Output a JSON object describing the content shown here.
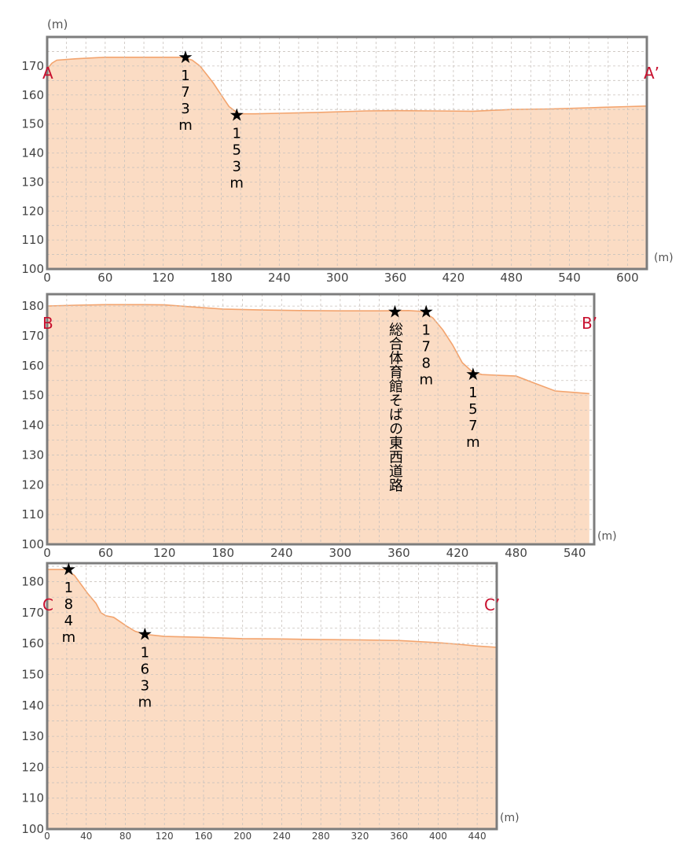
{
  "chart_data": [
    {
      "type": "area",
      "y_unit": "(m)",
      "x_unit": "(m)",
      "ylim": [
        100,
        180
      ],
      "y_ticks": [
        "100",
        "110",
        "120",
        "130",
        "140",
        "150",
        "160",
        "170"
      ],
      "xlim": [
        0,
        620
      ],
      "x_ticks": [
        "0",
        "60",
        "120",
        "180",
        "240",
        "300",
        "360",
        "420",
        "480",
        "540",
        "600"
      ],
      "grid": true,
      "start_label": "A",
      "end_label": "A’",
      "x": [
        0,
        5,
        10,
        30,
        60,
        100,
        140,
        150,
        158,
        165,
        172,
        180,
        188,
        196,
        200,
        215,
        240,
        280,
        330,
        360,
        400,
        440,
        480,
        520,
        560,
        600,
        620
      ],
      "y": [
        169,
        171,
        172,
        172.5,
        173,
        173,
        173,
        172,
        170,
        167,
        164,
        160,
        156,
        154,
        153.5,
        153.5,
        153.7,
        154,
        154.5,
        154.6,
        154.5,
        154.4,
        155,
        155.2,
        155.6,
        156,
        156.2
      ],
      "annotations": [
        {
          "x": 143,
          "y": 173,
          "marker": "★",
          "text": "173m"
        },
        {
          "x": 196,
          "y": 153,
          "marker": "★",
          "text": "153m"
        }
      ]
    },
    {
      "type": "area",
      "x_unit": "(m)",
      "ylim": [
        100,
        184
      ],
      "y_ticks": [
        "100",
        "110",
        "120",
        "130",
        "140",
        "150",
        "160",
        "170",
        "180"
      ],
      "xlim": [
        0,
        560
      ],
      "x_ticks": [
        "0",
        "60",
        "120",
        "180",
        "240",
        "300",
        "360",
        "420",
        "480",
        "540"
      ],
      "grid": true,
      "start_label": "B",
      "end_label": "B’",
      "x": [
        0,
        30,
        60,
        100,
        120,
        150,
        180,
        220,
        260,
        300,
        340,
        370,
        385,
        395,
        405,
        415,
        425,
        435,
        445,
        460,
        480,
        500,
        520,
        540,
        555
      ],
      "y": [
        180,
        180.3,
        180.5,
        180.5,
        180.4,
        179.7,
        179,
        178.7,
        178.5,
        178.4,
        178.4,
        178.5,
        178.2,
        176,
        172,
        167,
        161,
        158,
        157,
        156.8,
        156.5,
        154,
        151.5,
        151,
        150.6
      ],
      "annotations": [
        {
          "x": 356,
          "y": 178,
          "marker": "★",
          "text": "総合体育館そばの東西道路"
        },
        {
          "x": 388,
          "y": 178,
          "marker": "★",
          "text": "178m"
        },
        {
          "x": 436,
          "y": 157,
          "marker": "★",
          "text": "157m"
        }
      ]
    },
    {
      "type": "area",
      "x_unit": "(m)",
      "ylim": [
        100,
        186
      ],
      "y_ticks": [
        "100",
        "110",
        "120",
        "130",
        "140",
        "150",
        "160",
        "170",
        "180"
      ],
      "xlim": [
        0,
        460
      ],
      "x_ticks": [
        "0",
        "40",
        "80",
        "120",
        "160",
        "200",
        "240",
        "280",
        "320",
        "360",
        "400",
        "440"
      ],
      "grid": true,
      "start_label": "C",
      "end_label": "C’",
      "x": [
        0,
        10,
        20,
        28,
        35,
        42,
        50,
        55,
        60,
        68,
        75,
        82,
        90,
        100,
        120,
        160,
        200,
        240,
        280,
        320,
        360,
        400,
        420,
        440,
        460
      ],
      "y": [
        184,
        184,
        184,
        182,
        179,
        176,
        173,
        170,
        169,
        168.5,
        167,
        165.5,
        164,
        163,
        162.3,
        162,
        161.6,
        161.5,
        161.3,
        161.2,
        161,
        160.3,
        159.8,
        159.2,
        158.8
      ],
      "annotations": [
        {
          "x": 22,
          "y": 184,
          "marker": "★",
          "text": "184m"
        },
        {
          "x": 100,
          "y": 163,
          "marker": "★",
          "text": "163m"
        }
      ]
    }
  ]
}
